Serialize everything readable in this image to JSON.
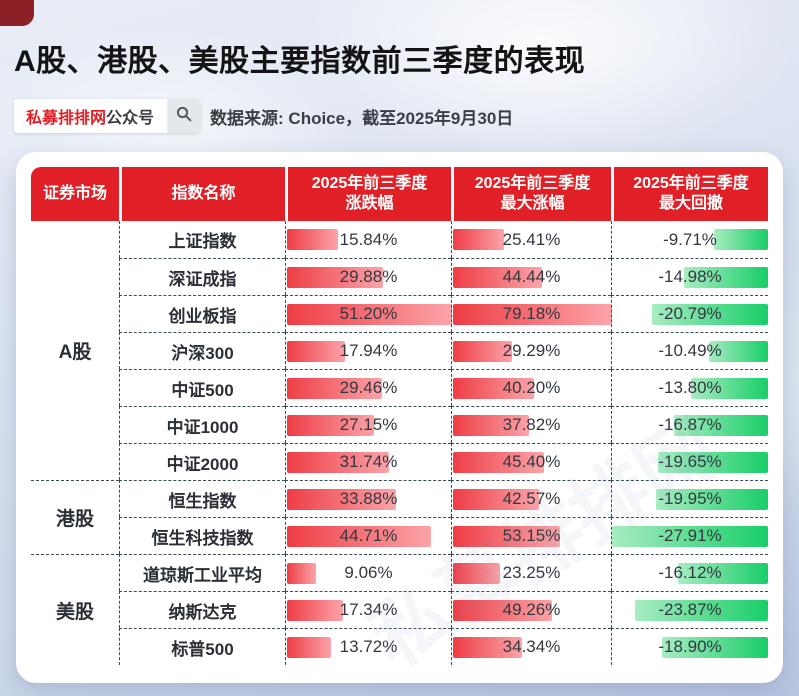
{
  "page": {
    "title": "A股、港股、美股主要指数前三季度的表现",
    "badge": {
      "brand": "私募排排网",
      "suffix": "公众号"
    },
    "source_note": "数据来源: Choice，截至2025年9月30日",
    "watermark": "私募排排网"
  },
  "table": {
    "headers": [
      {
        "label": "证券市场"
      },
      {
        "label": "指数名称"
      },
      {
        "top": "2025年前三季度",
        "bottom": "涨跌幅"
      },
      {
        "top": "2025年前三季度",
        "bottom": "最大涨幅"
      },
      {
        "top": "2025年前三季度",
        "bottom": "最大回撤"
      }
    ]
  },
  "colors": {
    "header_red": "#e02026",
    "bar_red_start": "#ee3d45",
    "bar_red_end": "#fba4a9",
    "bar_green_start": "#a8ecc2",
    "bar_green_end": "#18ce68",
    "dashed_border": "#3d4a5c"
  },
  "chart_data": {
    "type": "table",
    "title": "A股、港股、美股主要指数前三季度的表现",
    "columns": [
      "证券市场",
      "指数名称",
      "2025年前三季度涨跌幅",
      "2025年前三季度最大涨幅",
      "2025年前三季度最大回撤"
    ],
    "bar_scaling": "each value column normalized to its own max (max bar = full cell width); red bars anchored left, green bars anchored right",
    "column_max": {
      "ytd_change": 51.2,
      "max_gain": 79.18,
      "max_drawdown": 27.91
    },
    "groups": [
      {
        "market": "A股",
        "rows": [
          {
            "index": "上证指数",
            "ytd_change": 15.84,
            "max_gain": 25.41,
            "max_drawdown": -9.71
          },
          {
            "index": "深证成指",
            "ytd_change": 29.88,
            "max_gain": 44.44,
            "max_drawdown": -14.98
          },
          {
            "index": "创业板指",
            "ytd_change": 51.2,
            "max_gain": 79.18,
            "max_drawdown": -20.79
          },
          {
            "index": "沪深300",
            "ytd_change": 17.94,
            "max_gain": 29.29,
            "max_drawdown": -10.49
          },
          {
            "index": "中证500",
            "ytd_change": 29.46,
            "max_gain": 40.2,
            "max_drawdown": -13.8
          },
          {
            "index": "中证1000",
            "ytd_change": 27.15,
            "max_gain": 37.82,
            "max_drawdown": -16.87
          },
          {
            "index": "中证2000",
            "ytd_change": 31.74,
            "max_gain": 45.4,
            "max_drawdown": -19.65
          }
        ]
      },
      {
        "market": "港股",
        "rows": [
          {
            "index": "恒生指数",
            "ytd_change": 33.88,
            "max_gain": 42.57,
            "max_drawdown": -19.95
          },
          {
            "index": "恒生科技指数",
            "ytd_change": 44.71,
            "max_gain": 53.15,
            "max_drawdown": -27.91
          }
        ]
      },
      {
        "market": "美股",
        "rows": [
          {
            "index": "道琼斯工业平均",
            "ytd_change": 9.06,
            "max_gain": 23.25,
            "max_drawdown": -16.12
          },
          {
            "index": "纳斯达克",
            "ytd_change": 17.34,
            "max_gain": 49.26,
            "max_drawdown": -23.87
          },
          {
            "index": "标普500",
            "ytd_change": 13.72,
            "max_gain": 34.34,
            "max_drawdown": -18.9
          }
        ]
      }
    ]
  }
}
